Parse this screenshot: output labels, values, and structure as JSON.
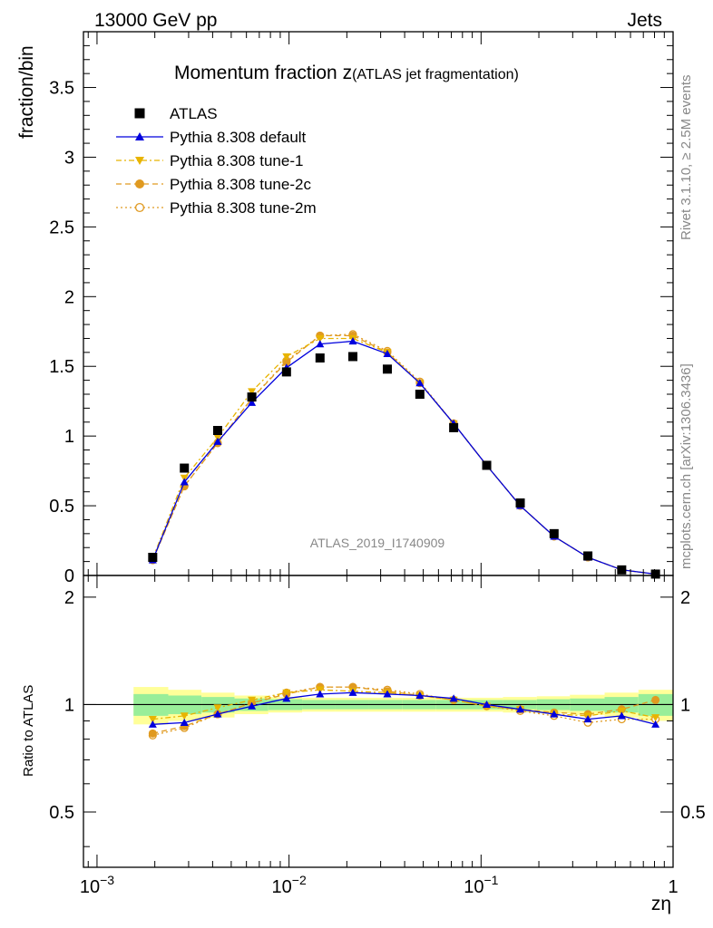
{
  "header": {
    "left": "13000 GeV pp",
    "right": "Jets"
  },
  "side": {
    "rivet": "Rivet 3.1.10, ≥ 2.5M events",
    "mcplots": "mcplots.cern.ch [arXiv:1306.3436]"
  },
  "chart_data": {
    "type": "scatter",
    "title_main": "Momentum fraction z",
    "title_sub": "(ATLAS jet fragmentation)",
    "watermark": "ATLAS_2019_I1740909",
    "xlabel": "zη",
    "ylabel": "fraction/bin",
    "ratio_ylabel": "Ratio to ATLAS",
    "xscale": "log",
    "xlim": [
      0.00085,
      1.0
    ],
    "ylim": [
      0,
      3.9
    ],
    "ratio_ylim": [
      0.35,
      2.3
    ],
    "x_ticks": [
      {
        "label": "10",
        "exp": "−3",
        "value": 0.001
      },
      {
        "label": "10",
        "exp": "−2",
        "value": 0.01
      },
      {
        "label": "10",
        "exp": "−1",
        "value": 0.1
      },
      {
        "label": "1",
        "exp": "",
        "value": 1.0
      }
    ],
    "y_ticks": [
      "0",
      "0.5",
      "1",
      "1.5",
      "2",
      "2.5",
      "3",
      "3.5"
    ],
    "ratio_ticks": [
      "0.5",
      "1",
      "2"
    ],
    "legend_position": "top-left",
    "x": [
      0.00195,
      0.00285,
      0.00425,
      0.0064,
      0.0097,
      0.0145,
      0.0215,
      0.0325,
      0.048,
      0.072,
      0.107,
      0.16,
      0.24,
      0.36,
      0.54,
      0.81
    ],
    "x_edges": [
      0.00155,
      0.00235,
      0.0035,
      0.0052,
      0.0078,
      0.0117,
      0.0174,
      0.026,
      0.039,
      0.058,
      0.087,
      0.13,
      0.195,
      0.29,
      0.44,
      0.66,
      1.0
    ],
    "ratio_band_inner": [
      0.07,
      0.06,
      0.05,
      0.04,
      0.035,
      0.03,
      0.03,
      0.03,
      0.03,
      0.03,
      0.03,
      0.03,
      0.035,
      0.04,
      0.05,
      0.07
    ],
    "ratio_band_outer": [
      0.12,
      0.1,
      0.08,
      0.06,
      0.05,
      0.045,
      0.045,
      0.045,
      0.045,
      0.045,
      0.045,
      0.05,
      0.055,
      0.065,
      0.08,
      0.1
    ],
    "series": [
      {
        "name": "ATLAS",
        "color": "#000000",
        "marker": "square",
        "values": [
          0.13,
          0.77,
          1.04,
          1.28,
          1.46,
          1.56,
          1.57,
          1.48,
          1.3,
          1.06,
          0.79,
          0.52,
          0.3,
          0.14,
          0.04,
          0.01
        ]
      },
      {
        "name": "Pythia 8.308 default",
        "color": "#0000dd",
        "marker": "triangle-up",
        "dash": "",
        "values": [
          0.11,
          0.67,
          0.96,
          1.24,
          1.49,
          1.66,
          1.68,
          1.59,
          1.38,
          1.09,
          0.79,
          0.5,
          0.28,
          0.13,
          0.04,
          0.01
        ],
        "ratio": [
          0.88,
          0.89,
          0.94,
          0.99,
          1.04,
          1.07,
          1.08,
          1.07,
          1.06,
          1.04,
          1.0,
          0.97,
          0.94,
          0.91,
          0.93,
          0.88
        ]
      },
      {
        "name": "Pythia 8.308 tune-1",
        "color": "#e8b400",
        "marker": "triangle-down",
        "dash": "6,3,2,3",
        "values": [
          0.12,
          0.7,
          0.99,
          1.32,
          1.57,
          1.7,
          1.7,
          1.6,
          1.38,
          1.09,
          0.79,
          0.5,
          0.28,
          0.13,
          0.04,
          0.01
        ],
        "ratio": [
          0.91,
          0.93,
          0.98,
          1.03,
          1.08,
          1.1,
          1.09,
          1.08,
          1.06,
          1.03,
          0.99,
          0.97,
          0.94,
          0.93,
          0.96,
          0.92
        ]
      },
      {
        "name": "Pythia 8.308 tune-2c",
        "color": "#e09a20",
        "marker": "circle",
        "dash": "6,4",
        "values": [
          0.11,
          0.64,
          0.95,
          1.27,
          1.53,
          1.72,
          1.72,
          1.6,
          1.38,
          1.09,
          0.79,
          0.5,
          0.28,
          0.13,
          0.04,
          0.01
        ],
        "ratio": [
          0.83,
          0.87,
          0.94,
          1.01,
          1.07,
          1.12,
          1.12,
          1.09,
          1.06,
          1.03,
          0.99,
          0.97,
          0.95,
          0.94,
          0.97,
          1.03
        ]
      },
      {
        "name": "Pythia 8.308 tune-2m",
        "color": "#e09a20",
        "marker": "circle-open",
        "dash": "2,3",
        "values": [
          0.11,
          0.64,
          0.95,
          1.27,
          1.54,
          1.72,
          1.73,
          1.61,
          1.39,
          1.09,
          0.79,
          0.5,
          0.28,
          0.13,
          0.04,
          0.01
        ],
        "ratio": [
          0.82,
          0.86,
          0.94,
          1.01,
          1.08,
          1.12,
          1.12,
          1.1,
          1.07,
          1.03,
          0.99,
          0.96,
          0.93,
          0.89,
          0.91,
          0.91
        ]
      }
    ]
  }
}
